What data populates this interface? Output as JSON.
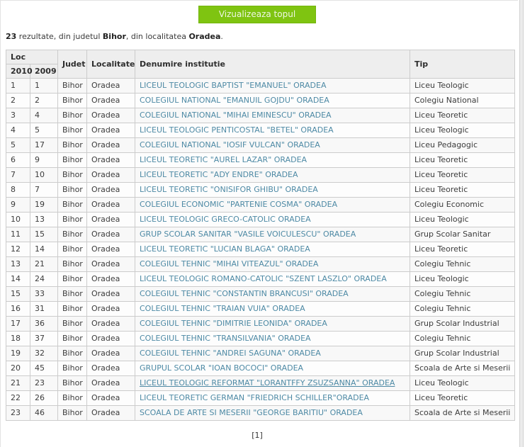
{
  "button": {
    "label": "Vizualizeaza topul"
  },
  "summary": {
    "count": "23",
    "part1": " rezultate, din judetul ",
    "judet": "Bihor",
    "part2": ", din localitatea ",
    "localitate": "Oradea",
    "part3": "."
  },
  "table": {
    "headers": {
      "loc_group": "Loc",
      "col_2010": "2010",
      "col_2009": "2009",
      "judet": "Judet",
      "localitate": "Localitate",
      "denumire": "Denumire institutie",
      "tip": "Tip"
    },
    "hovered_row": 21,
    "rows": [
      {
        "loc2010": "1",
        "loc2009": "1",
        "judet": "Bihor",
        "localitate": "Oradea",
        "denumire": "LICEUL TEOLOGIC BAPTIST \"EMANUEL\" ORADEA",
        "tip": "Liceu Teologic"
      },
      {
        "loc2010": "2",
        "loc2009": "2",
        "judet": "Bihor",
        "localitate": "Oradea",
        "denumire": "COLEGIUL NATIONAL \"EMANUIL GOJDU\" ORADEA",
        "tip": "Colegiu National"
      },
      {
        "loc2010": "3",
        "loc2009": "4",
        "judet": "Bihor",
        "localitate": "Oradea",
        "denumire": "COLEGIUL NATIONAL \"MIHAI EMINESCU\" ORADEA",
        "tip": "Liceu Teoretic"
      },
      {
        "loc2010": "4",
        "loc2009": "5",
        "judet": "Bihor",
        "localitate": "Oradea",
        "denumire": "LICEUL TEOLOGIC PENTICOSTAL \"BETEL\" ORADEA",
        "tip": "Liceu Teologic"
      },
      {
        "loc2010": "5",
        "loc2009": "17",
        "judet": "Bihor",
        "localitate": "Oradea",
        "denumire": "COLEGIUL NATIONAL \"IOSIF VULCAN\" ORADEA",
        "tip": "Liceu Pedagogic"
      },
      {
        "loc2010": "6",
        "loc2009": "9",
        "judet": "Bihor",
        "localitate": "Oradea",
        "denumire": "LICEUL TEORETIC \"AUREL LAZAR\" ORADEA",
        "tip": "Liceu Teoretic"
      },
      {
        "loc2010": "7",
        "loc2009": "10",
        "judet": "Bihor",
        "localitate": "Oradea",
        "denumire": "LICEUL TEORETIC \"ADY ENDRE\" ORADEA",
        "tip": "Liceu Teoretic"
      },
      {
        "loc2010": "8",
        "loc2009": "7",
        "judet": "Bihor",
        "localitate": "Oradea",
        "denumire": "LICEUL TEORETIC \"ONISIFOR GHIBU\" ORADEA",
        "tip": "Liceu Teoretic"
      },
      {
        "loc2010": "9",
        "loc2009": "19",
        "judet": "Bihor",
        "localitate": "Oradea",
        "denumire": "COLEGIUL ECONOMIC \"PARTENIE COSMA\" ORADEA",
        "tip": "Colegiu Economic"
      },
      {
        "loc2010": "10",
        "loc2009": "13",
        "judet": "Bihor",
        "localitate": "Oradea",
        "denumire": "LICEUL TEOLOGIC GRECO-CATOLIC ORADEA",
        "tip": "Liceu Teologic"
      },
      {
        "loc2010": "11",
        "loc2009": "15",
        "judet": "Bihor",
        "localitate": "Oradea",
        "denumire": "GRUP SCOLAR SANITAR \"VASILE VOICULESCU\" ORADEA",
        "tip": "Grup Scolar Sanitar"
      },
      {
        "loc2010": "12",
        "loc2009": "14",
        "judet": "Bihor",
        "localitate": "Oradea",
        "denumire": "LICEUL TEORETIC \"LUCIAN BLAGA\" ORADEA",
        "tip": "Liceu Teoretic"
      },
      {
        "loc2010": "13",
        "loc2009": "21",
        "judet": "Bihor",
        "localitate": "Oradea",
        "denumire": "COLEGIUL TEHNIC \"MIHAI VITEAZUL\" ORADEA",
        "tip": "Colegiu Tehnic"
      },
      {
        "loc2010": "14",
        "loc2009": "24",
        "judet": "Bihor",
        "localitate": "Oradea",
        "denumire": "LICEUL TEOLOGIC ROMANO-CATOLIC \"SZENT LASZLO\" ORADEA",
        "tip": "Liceu Teologic"
      },
      {
        "loc2010": "15",
        "loc2009": "33",
        "judet": "Bihor",
        "localitate": "Oradea",
        "denumire": "COLEGIUL TEHNIC \"CONSTANTIN BRANCUSI\" ORADEA",
        "tip": "Colegiu Tehnic"
      },
      {
        "loc2010": "16",
        "loc2009": "31",
        "judet": "Bihor",
        "localitate": "Oradea",
        "denumire": "COLEGIUL TEHNIC \"TRAIAN VUIA\" ORADEA",
        "tip": "Colegiu Tehnic"
      },
      {
        "loc2010": "17",
        "loc2009": "36",
        "judet": "Bihor",
        "localitate": "Oradea",
        "denumire": "COLEGIUL TEHNIC \"DIMITRIE LEONIDA\" ORADEA",
        "tip": "Grup Scolar Industrial"
      },
      {
        "loc2010": "18",
        "loc2009": "37",
        "judet": "Bihor",
        "localitate": "Oradea",
        "denumire": "COLEGIUL TEHNIC \"TRANSILVANIA\" ORADEA",
        "tip": "Colegiu Tehnic"
      },
      {
        "loc2010": "19",
        "loc2009": "32",
        "judet": "Bihor",
        "localitate": "Oradea",
        "denumire": "COLEGIUL TEHNIC \"ANDREI SAGUNA\" ORADEA",
        "tip": "Grup Scolar Industrial"
      },
      {
        "loc2010": "20",
        "loc2009": "45",
        "judet": "Bihor",
        "localitate": "Oradea",
        "denumire": "GRUPUL SCOLAR \"IOAN BOCOCI\" ORADEA",
        "tip": "Scoala de Arte si Meserii"
      },
      {
        "loc2010": "21",
        "loc2009": "23",
        "judet": "Bihor",
        "localitate": "Oradea",
        "denumire": "LICEUL TEOLOGIC REFORMAT \"LORANTFFY ZSUZSANNA\" ORADEA",
        "tip": "Liceu Teologic"
      },
      {
        "loc2010": "22",
        "loc2009": "26",
        "judet": "Bihor",
        "localitate": "Oradea",
        "denumire": "LICEUL TEORETIC GERMAN \"FRIEDRICH SCHILLER\"ORADEA",
        "tip": "Liceu Teoretic"
      },
      {
        "loc2010": "23",
        "loc2009": "46",
        "judet": "Bihor",
        "localitate": "Oradea",
        "denumire": "SCOALA DE ARTE SI MESERII \"GEORGE BARITIU\" ORADEA",
        "tip": "Scoala de Arte si Meserii"
      }
    ]
  },
  "pagination": {
    "current": "[1]"
  },
  "colors": {
    "button_green": "#7fc411",
    "link_teal": "#4e8aa5",
    "header_bg": "#eeeeee",
    "border": "#cccccc",
    "text": "#333333"
  }
}
